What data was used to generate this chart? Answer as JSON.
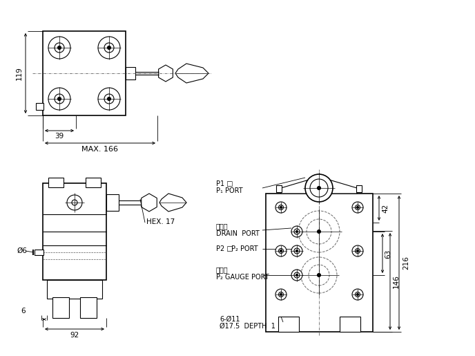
{
  "bg_color": "#ffffff",
  "line_color": "#000000",
  "annotations": {
    "dim_119": "119",
    "dim_39": "39",
    "dim_max166": "MAX. 166",
    "dim_6": "6",
    "dim_92": "92",
    "dim_phi6": "Ø6",
    "dim_hex17": "HEX. 17",
    "dim_42": "42",
    "dim_63": "63",
    "dim_146": "146",
    "dim_216": "216",
    "label_p1": "P1 □",
    "label_p1_port": "P₁ PORT",
    "label_drain_jp": "漏流口",
    "label_drain": "DRAIN  PORT",
    "label_p2_jp": "P2 □",
    "label_p2_port": "P₂ PORT",
    "label_gauge_jp": "測圧口",
    "label_gauge": "P₂ GAUGE PORT",
    "label_holes": "6-Ø11",
    "label_depth": "Ø17.5  DEPTH  1"
  }
}
